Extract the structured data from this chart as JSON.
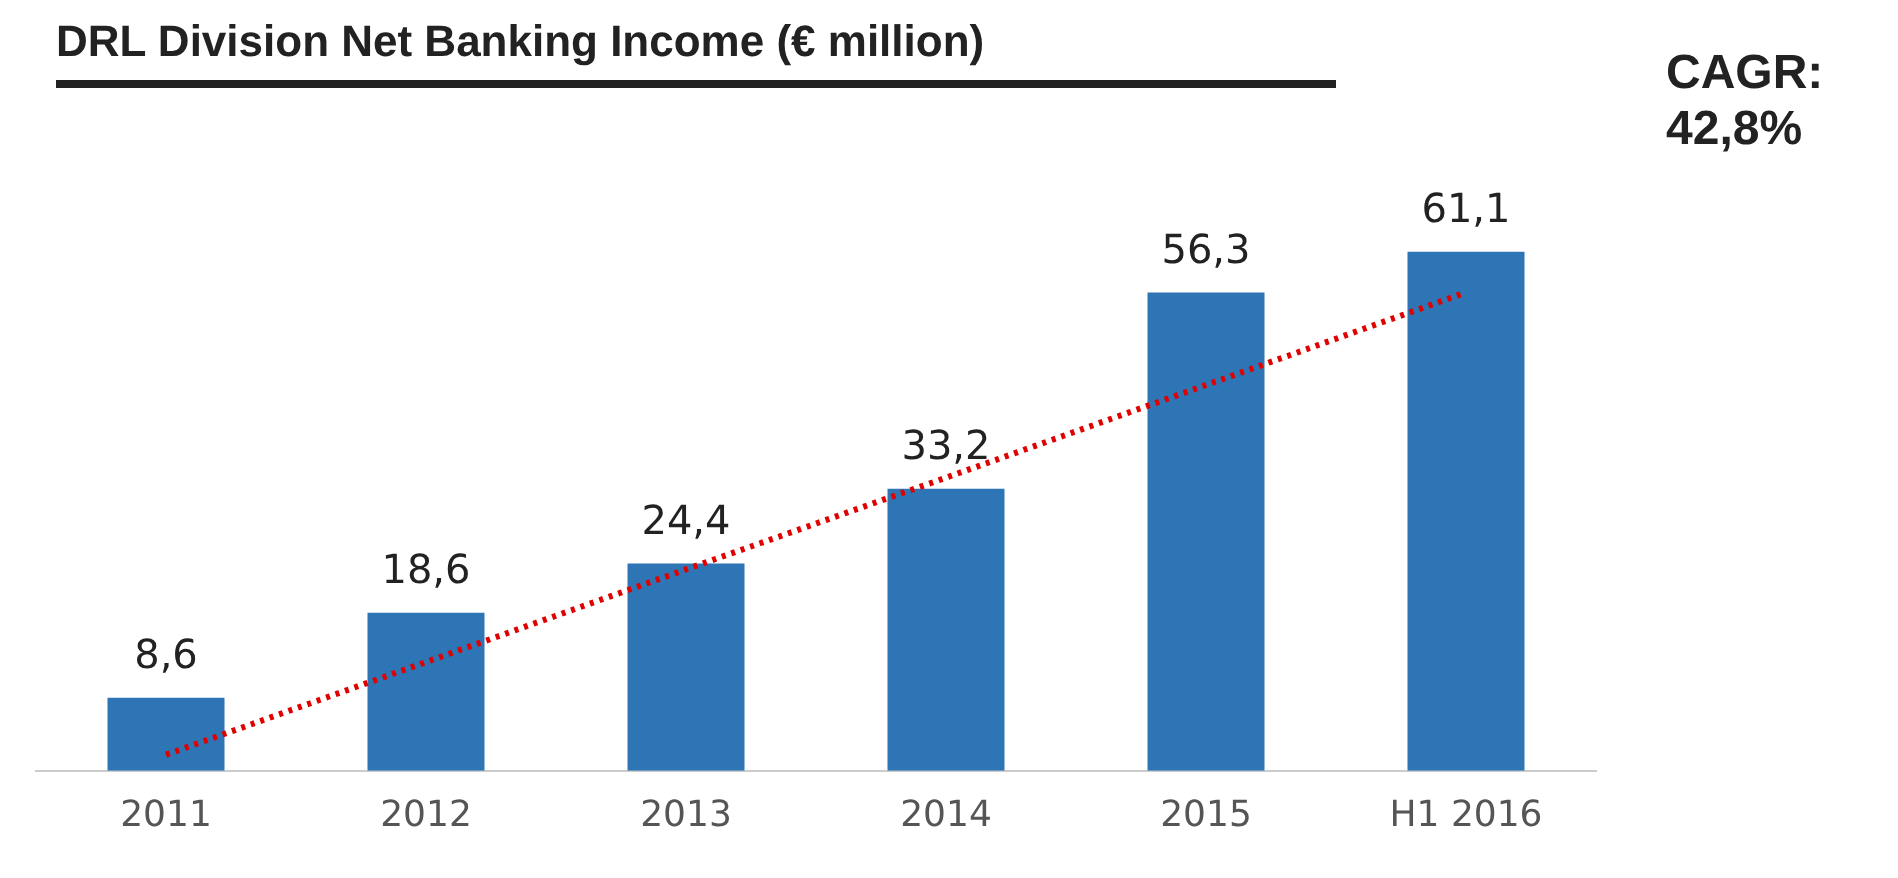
{
  "chart_data": {
    "type": "bar",
    "title": "DRL Division Net Banking Income (€ million)",
    "categories": [
      "2011",
      "2012",
      "2013",
      "2014",
      "2015",
      "H1 2016"
    ],
    "series": [
      {
        "color": "#2e75b6",
        "values": [
          8.6,
          18.6,
          24.4,
          33.2,
          56.3,
          61.1
        ],
        "value_labels": [
          "8,6",
          "18,6",
          "24,4",
          "33,2",
          "56,3",
          "61,1"
        ]
      },
      {
        "type": "line",
        "color": "#e00000",
        "line_style": "dotted",
        "marker": "none",
        "values": [
          1.9,
          12.8,
          23.7,
          34.5,
          45.4,
          56.3
        ]
      }
    ],
    "annotations": [
      "CAGR: 42,8%"
    ],
    "grid": false,
    "legend": false,
    "tick_labels": "x"
  }
}
